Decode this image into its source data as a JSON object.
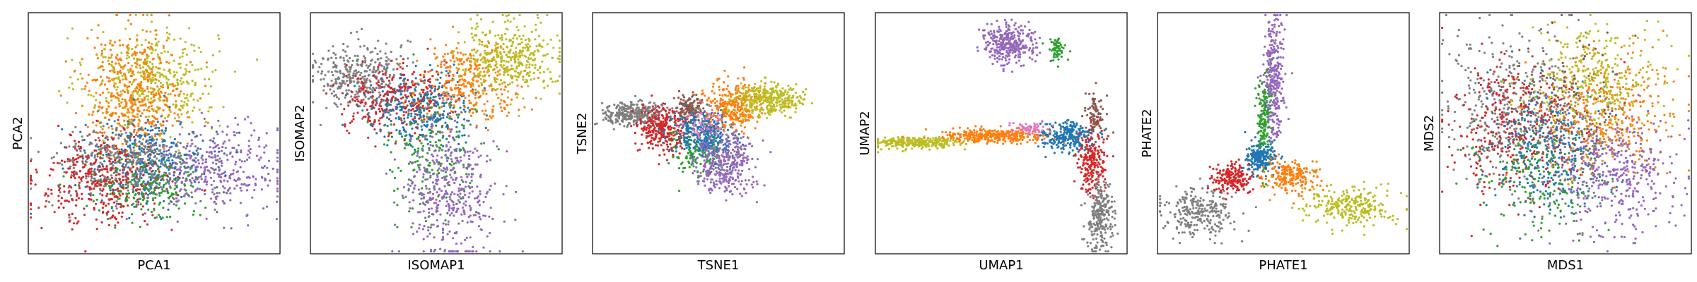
{
  "figure": {
    "background": "#ffffff"
  },
  "palette": {
    "gray": "#7f7f7f",
    "red": "#d62728",
    "blue": "#1f77b4",
    "green": "#2ca02c",
    "orange": "#ff7f0e",
    "olive": "#bcbd22",
    "purple": "#9467bd",
    "brown": "#8c564b",
    "pink": "#e377c2"
  },
  "chart_data": [
    {
      "type": "scatter",
      "xlabel": "PCA1",
      "ylabel": "PCA2",
      "xlim": [
        0,
        10
      ],
      "ylim": [
        0,
        10
      ],
      "ticks": false,
      "clusters": [
        {
          "color": "olive",
          "center": [
            4.9,
            7.2
          ],
          "spread": [
            1.3,
            1.1
          ],
          "count": 450
        },
        {
          "color": "orange",
          "center": [
            4.2,
            6.6
          ],
          "spread": [
            1.0,
            1.3
          ],
          "count": 450
        },
        {
          "color": "purple",
          "center": [
            7.2,
            3.5
          ],
          "spread": [
            1.5,
            0.9
          ],
          "count": 420
        },
        {
          "color": "blue",
          "center": [
            4.6,
            3.9
          ],
          "spread": [
            1.2,
            0.8
          ],
          "count": 380
        },
        {
          "color": "gray",
          "center": [
            3.6,
            3.6
          ],
          "spread": [
            1.4,
            0.9
          ],
          "count": 320
        },
        {
          "color": "red",
          "center": [
            2.9,
            3.0
          ],
          "spread": [
            1.3,
            0.9
          ],
          "count": 380
        },
        {
          "color": "green",
          "center": [
            4.9,
            2.8
          ],
          "spread": [
            1.1,
            0.7
          ],
          "count": 180
        }
      ]
    },
    {
      "type": "scatter",
      "xlabel": "ISOMAP1",
      "ylabel": "ISOMAP2",
      "xlim": [
        0,
        10
      ],
      "ylim": [
        0,
        10
      ],
      "ticks": false,
      "clusters": [
        {
          "color": "gray",
          "center": [
            1.9,
            7.4
          ],
          "spread": [
            0.9,
            0.7
          ],
          "count": 360
        },
        {
          "color": "red",
          "center": [
            3.4,
            6.4
          ],
          "spread": [
            1.0,
            0.7
          ],
          "count": 320
        },
        {
          "color": "blue",
          "center": [
            4.5,
            6.0
          ],
          "spread": [
            1.1,
            0.7
          ],
          "count": 320
        },
        {
          "color": "orange",
          "center": [
            6.4,
            7.2
          ],
          "spread": [
            1.0,
            0.8
          ],
          "count": 320
        },
        {
          "color": "olive",
          "center": [
            7.9,
            8.1
          ],
          "spread": [
            1.0,
            0.7
          ],
          "count": 380
        },
        {
          "color": "green",
          "center": [
            4.7,
            4.2
          ],
          "spread": [
            0.9,
            1.3
          ],
          "count": 180
        },
        {
          "color": "purple",
          "center": [
            5.6,
            2.4
          ],
          "spread": [
            0.9,
            1.4
          ],
          "count": 420
        }
      ]
    },
    {
      "type": "scatter",
      "xlabel": "TSNE1",
      "ylabel": "TSNE2",
      "xlim": [
        0,
        10
      ],
      "ylim": [
        0,
        10
      ],
      "ticks": false,
      "clusters": [
        {
          "color": "gray",
          "center": [
            1.6,
            5.8
          ],
          "spread": [
            0.6,
            0.25
          ],
          "count": 300
        },
        {
          "color": "red",
          "center": [
            2.8,
            5.2
          ],
          "spread": [
            0.5,
            0.5
          ],
          "count": 300
        },
        {
          "color": "brown",
          "center": [
            3.8,
            6.0
          ],
          "spread": [
            0.3,
            0.3
          ],
          "count": 120
        },
        {
          "color": "green",
          "center": [
            4.2,
            4.2
          ],
          "spread": [
            0.6,
            0.5
          ],
          "count": 160
        },
        {
          "color": "blue",
          "center": [
            4.4,
            5.0
          ],
          "spread": [
            0.6,
            0.5
          ],
          "count": 320
        },
        {
          "color": "orange",
          "center": [
            5.6,
            6.1
          ],
          "spread": [
            0.6,
            0.5
          ],
          "count": 300
        },
        {
          "color": "olive",
          "center": [
            7.0,
            6.4
          ],
          "spread": [
            0.7,
            0.3
          ],
          "count": 330
        },
        {
          "color": "purple",
          "center": [
            5.2,
            3.8
          ],
          "spread": [
            0.6,
            0.6
          ],
          "count": 360
        },
        {
          "color": "pink",
          "center": [
            4.5,
            5.4
          ],
          "spread": [
            0.4,
            0.3
          ],
          "count": 60
        }
      ]
    },
    {
      "type": "scatter",
      "xlabel": "UMAP1",
      "ylabel": "UMAP2",
      "xlim": [
        0,
        10
      ],
      "ylim": [
        0,
        10
      ],
      "ticks": false,
      "clusters": [
        {
          "color": "purple",
          "center": [
            5.3,
            8.7
          ],
          "spread": [
            0.5,
            0.4
          ],
          "count": 320
        },
        {
          "color": "green",
          "center": [
            7.2,
            8.5
          ],
          "spread": [
            0.2,
            0.25
          ],
          "count": 60
        },
        {
          "color": "olive",
          "center": [
            1.6,
            4.6
          ],
          "spread": [
            1.0,
            0.12
          ],
          "count": 300
        },
        {
          "color": "orange",
          "center": [
            4.6,
            4.9
          ],
          "spread": [
            1.0,
            0.14
          ],
          "count": 320
        },
        {
          "color": "blue",
          "center": [
            7.6,
            4.9
          ],
          "spread": [
            0.6,
            0.3
          ],
          "count": 260
        },
        {
          "color": "brown",
          "center": [
            8.7,
            5.8
          ],
          "spread": [
            0.2,
            0.5
          ],
          "count": 80
        },
        {
          "color": "red",
          "center": [
            8.6,
            3.7
          ],
          "spread": [
            0.3,
            0.7
          ],
          "count": 220
        },
        {
          "color": "gray",
          "center": [
            8.9,
            1.5
          ],
          "spread": [
            0.25,
            0.8
          ],
          "count": 240
        },
        {
          "color": "pink",
          "center": [
            6.1,
            5.2
          ],
          "spread": [
            0.4,
            0.15
          ],
          "count": 60
        }
      ]
    },
    {
      "type": "scatter",
      "xlabel": "PHATE1",
      "ylabel": "PHATE2",
      "xlim": [
        0,
        10
      ],
      "ylim": [
        0,
        10
      ],
      "ticks": false,
      "clusters": [
        {
          "color": "purple",
          "center": [
            4.6,
            7.2
          ],
          "spread": [
            0.2,
            1.4
          ],
          "count": 320
        },
        {
          "color": "green",
          "center": [
            4.2,
            5.6
          ],
          "spread": [
            0.15,
            1.0
          ],
          "count": 160
        },
        {
          "color": "gray",
          "center": [
            1.6,
            1.7
          ],
          "spread": [
            0.7,
            0.5
          ],
          "count": 260
        },
        {
          "color": "red",
          "center": [
            3.0,
            3.1
          ],
          "spread": [
            0.4,
            0.3
          ],
          "count": 200
        },
        {
          "color": "blue",
          "center": [
            4.1,
            4.0
          ],
          "spread": [
            0.3,
            0.3
          ],
          "count": 220
        },
        {
          "color": "orange",
          "center": [
            5.4,
            3.2
          ],
          "spread": [
            0.6,
            0.35
          ],
          "count": 220
        },
        {
          "color": "olive",
          "center": [
            7.6,
            1.9
          ],
          "spread": [
            0.9,
            0.4
          ],
          "count": 260
        }
      ]
    },
    {
      "type": "scatter",
      "xlabel": "MDS1",
      "ylabel": "MDS2",
      "xlim": [
        0,
        10
      ],
      "ylim": [
        0,
        10
      ],
      "ticks": false,
      "clusters": [
        {
          "color": "gray",
          "center": [
            3.0,
            6.0
          ],
          "spread": [
            1.5,
            1.6
          ],
          "count": 420
        },
        {
          "color": "red",
          "center": [
            3.1,
            5.2
          ],
          "spread": [
            1.3,
            1.4
          ],
          "count": 380
        },
        {
          "color": "blue",
          "center": [
            4.4,
            4.3
          ],
          "spread": [
            1.2,
            1.2
          ],
          "count": 360
        },
        {
          "color": "green",
          "center": [
            4.0,
            3.2
          ],
          "spread": [
            1.3,
            1.1
          ],
          "count": 200
        },
        {
          "color": "orange",
          "center": [
            6.7,
            5.8
          ],
          "spread": [
            1.2,
            1.2
          ],
          "count": 380
        },
        {
          "color": "olive",
          "center": [
            6.0,
            7.2
          ],
          "spread": [
            1.3,
            1.1
          ],
          "count": 330
        },
        {
          "color": "purple",
          "center": [
            7.0,
            3.2
          ],
          "spread": [
            1.2,
            1.2
          ],
          "count": 400
        },
        {
          "color": "brown",
          "center": [
            4.5,
            6.5
          ],
          "spread": [
            1.4,
            1.4
          ],
          "count": 120
        }
      ]
    }
  ]
}
